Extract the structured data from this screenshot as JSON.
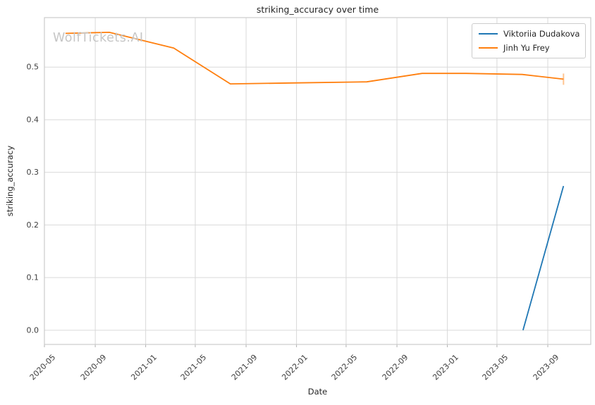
{
  "chart_data": {
    "type": "line",
    "title": "striking_accuracy over time",
    "xlabel": "Date",
    "ylabel": "striking_accuracy",
    "watermark": "WolfTickets.AI",
    "grid": true,
    "legend_position": "upper right",
    "x_ticks": [
      "2020-05",
      "2020-09",
      "2021-01",
      "2021-05",
      "2021-09",
      "2022-01",
      "2022-05",
      "2022-09",
      "2023-01",
      "2023-05",
      "2023-09"
    ],
    "y_ticks": [
      "0.0",
      "0.1",
      "0.2",
      "0.3",
      "0.4",
      "0.5"
    ],
    "xlim": [
      "2020-05-01",
      "2023-12-14"
    ],
    "ylim": [
      -0.027,
      0.594
    ],
    "colors": {
      "grid": "#d9d9d9",
      "spine": "#cccccc",
      "tick_mark": "#b0b0b0",
      "tick_text": "#3d3d3d"
    },
    "series": [
      {
        "name": "Viktoriia Dudakova",
        "color": "#1f77b4",
        "points": [
          [
            "2023-07-03",
            0.0
          ],
          [
            "2023-10-09",
            0.274
          ]
        ]
      },
      {
        "name": "Jinh Yu Frey",
        "color": "#ff7f0e",
        "end_cap": true,
        "points": [
          [
            "2020-06-21",
            0.564
          ],
          [
            "2020-10-05",
            0.566
          ],
          [
            "2021-03-10",
            0.536
          ],
          [
            "2021-07-25",
            0.468
          ],
          [
            "2022-01-01",
            0.47
          ],
          [
            "2022-06-20",
            0.472
          ],
          [
            "2022-11-01",
            0.488
          ],
          [
            "2023-02-15",
            0.488
          ],
          [
            "2023-07-01",
            0.486
          ],
          [
            "2023-10-09",
            0.477
          ]
        ]
      }
    ]
  }
}
